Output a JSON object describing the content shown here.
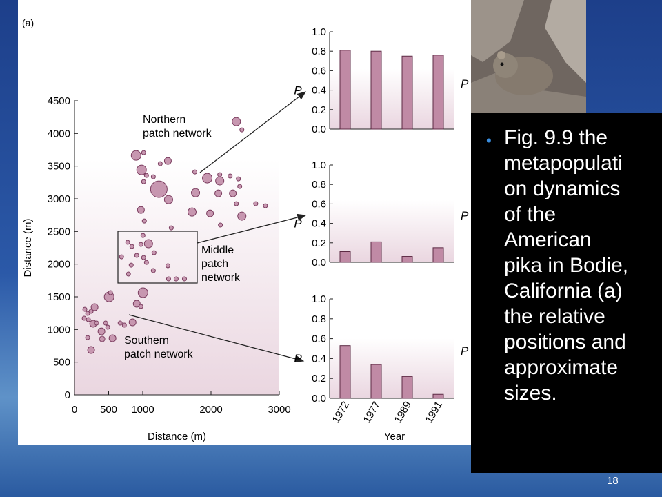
{
  "panel_label": "(a)",
  "chart_data": [
    {
      "type": "scatter",
      "xlabel": "Distance (m)",
      "ylabel": "Distance (m)",
      "xlim": [
        0,
        3000
      ],
      "ylim": [
        0,
        4500
      ],
      "xticks": [
        0,
        500,
        1000,
        2000,
        3000
      ],
      "yticks": [
        0,
        500,
        1000,
        1500,
        2000,
        2500,
        3000,
        3500,
        4000,
        4500
      ],
      "color": "#c797b0",
      "edge_color": "#7a3c5e",
      "annotations": [
        [
          "Northern",
          "patch network"
        ],
        [
          "Middle",
          "patch",
          "network"
        ],
        [
          "Southern",
          "patch network"
        ]
      ],
      "x": [
        2371,
        2452,
        902,
        1013,
        982,
        1054,
        1155,
        1236,
        1256,
        1368,
        1378,
        1013,
        1763,
        1773,
        1945,
        2128,
        2128,
        2280,
        2401,
        2421,
        2107,
        2320,
        2371,
        2655,
        2797,
        1722,
        1986,
        2452,
        2138,
        973,
        1023,
        1418,
        1003,
        780,
        841,
        973,
        1084,
        689,
        912,
        1013,
        1165,
        1054,
        831,
        1368,
        790,
        1155,
        1378,
        1489,
        1611,
        1003,
        912,
        973,
        507,
        527,
        294,
        152,
        193,
        243,
        142,
        203,
        274,
        324,
        456,
        487,
        395,
        669,
        730,
        851,
        193,
        405,
        557,
        243
      ],
      "y": [
        4182,
        4055,
        3664,
        3706,
        3442,
        3358,
        3337,
        3147,
        3537,
        3580,
        2988,
        3263,
        3411,
        3094,
        3316,
        3274,
        3369,
        3348,
        3305,
        3189,
        3083,
        3083,
        2925,
        2925,
        2893,
        2798,
        2777,
        2735,
        2598,
        2830,
        2661,
        2555,
        2439,
        2334,
        2271,
        2302,
        2313,
        2112,
        2134,
        2101,
        2175,
        2027,
        1985,
        1975,
        1848,
        1901,
        1774,
        1774,
        1774,
        1563,
        1394,
        1352,
        1499,
        1563,
        1341,
        1309,
        1246,
        1278,
        1172,
        1151,
        1088,
        1098,
        1098,
        1035,
        971,
        1098,
        1067,
        1109,
        876,
        855,
        866,
        686
      ],
      "sizes": [
        6,
        3,
        7,
        3,
        7,
        3,
        3,
        12,
        3,
        5,
        6,
        3,
        3,
        6,
        7,
        6,
        3,
        3,
        3,
        3,
        5,
        5,
        3,
        3,
        3,
        6,
        5,
        6,
        3,
        5,
        3,
        3,
        3,
        3,
        3,
        3,
        6,
        3,
        3,
        3,
        3,
        3,
        3,
        3,
        3,
        3,
        3,
        3,
        3,
        7,
        5,
        3,
        7,
        3,
        5,
        3,
        3,
        3,
        3,
        3,
        5,
        3,
        3,
        3,
        5,
        3,
        3,
        5,
        3,
        4,
        5,
        5
      ]
    },
    {
      "type": "bar",
      "ylabel": "P",
      "categories": [
        null,
        null,
        null,
        null
      ],
      "values": [
        0.81,
        0.8,
        0.75,
        0.76
      ],
      "ylim": [
        0,
        1
      ],
      "yticks": [
        {
          "value": 0,
          "label": "0.0"
        },
        0.2,
        0.4,
        0.6,
        0.8,
        {
          "value": 1,
          "label": "1.0"
        }
      ],
      "color": "#c08aa5"
    },
    {
      "type": "bar",
      "ylabel": "P",
      "categories": [
        null,
        null,
        null,
        null
      ],
      "values": [
        0.11,
        0.21,
        0.06,
        0.15
      ],
      "ylim": [
        0,
        1
      ],
      "yticks": [
        {
          "value": 0,
          "label": "0.0"
        },
        0.2,
        0.4,
        0.6,
        0.8,
        {
          "value": 1,
          "label": "1.0"
        }
      ],
      "color": "#c08aa5"
    },
    {
      "type": "bar",
      "ylabel": "P",
      "xlabel": "Year",
      "categories": [
        "1972",
        "1977",
        "1989",
        "1991"
      ],
      "values": [
        0.53,
        0.34,
        0.22,
        0.04
      ],
      "ylim": [
        0,
        1
      ],
      "yticks": [
        {
          "value": 0,
          "label": "0.0"
        },
        0.2,
        0.4,
        0.6,
        0.8,
        {
          "value": 1,
          "label": "1.0"
        }
      ],
      "color": "#c08aa5"
    }
  ],
  "side_labels": [
    "P",
    "P",
    "P"
  ],
  "bullet_lines": [
    "Fig. 9.9 the",
    "metapopulati",
    "on dynamics",
    "of the",
    "American",
    "pika in Bodie,",
    "California (a)",
    "the relative",
    "positions and",
    "approximate",
    "sizes."
  ],
  "page_number": "18"
}
